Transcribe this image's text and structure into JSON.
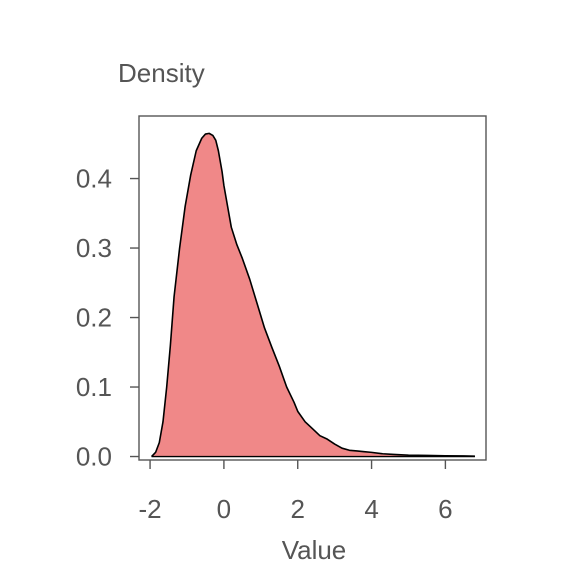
{
  "chart_data": {
    "type": "area",
    "title": "",
    "xlabel": "Value",
    "ylabel": "Density",
    "xlim": [
      -2.3,
      7.1
    ],
    "ylim": [
      -0.005,
      0.49
    ],
    "xticks": [
      -2,
      0,
      2,
      4,
      6
    ],
    "xtick_labels": [
      "-2",
      "0",
      "2",
      "4",
      "6"
    ],
    "yticks": [
      0.0,
      0.1,
      0.2,
      0.3,
      0.4
    ],
    "ytick_labels": [
      "0.0",
      "0.1",
      "0.2",
      "0.3",
      "0.4"
    ],
    "grid": false,
    "legend": "none",
    "colors": {
      "fill": "#F08888",
      "line": "#000000",
      "frame": "#555555",
      "text": "#555555"
    },
    "series": [
      {
        "x": [
          -1.96,
          -1.85,
          -1.75,
          -1.65,
          -1.55,
          -1.45,
          -1.35,
          -1.2,
          -1.05,
          -0.9,
          -0.75,
          -0.6,
          -0.5,
          -0.4,
          -0.3,
          -0.22,
          -0.15,
          -0.05,
          0.0,
          0.1,
          0.2,
          0.35,
          0.5,
          0.7,
          0.9,
          1.1,
          1.3,
          1.5,
          1.7,
          1.9,
          2.0,
          2.2,
          2.4,
          2.6,
          2.8,
          3.0,
          3.2,
          3.4,
          3.6,
          3.8,
          4.0,
          4.3,
          4.6,
          5.0,
          5.5,
          6.0,
          6.5,
          6.8
        ],
        "y": [
          0.0,
          0.006,
          0.02,
          0.05,
          0.1,
          0.16,
          0.23,
          0.3,
          0.36,
          0.405,
          0.44,
          0.458,
          0.464,
          0.465,
          0.462,
          0.455,
          0.44,
          0.41,
          0.39,
          0.36,
          0.33,
          0.305,
          0.285,
          0.255,
          0.22,
          0.185,
          0.157,
          0.13,
          0.1,
          0.078,
          0.065,
          0.05,
          0.04,
          0.03,
          0.025,
          0.018,
          0.012,
          0.009,
          0.008,
          0.007,
          0.006,
          0.004,
          0.003,
          0.002,
          0.0015,
          0.001,
          0.0008,
          0.0005
        ]
      }
    ]
  }
}
